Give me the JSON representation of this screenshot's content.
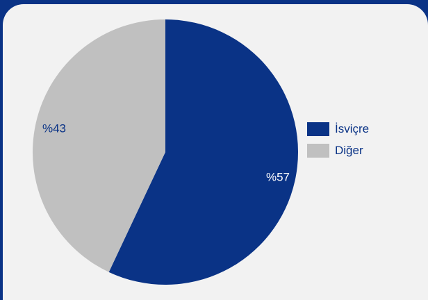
{
  "chart_data": {
    "type": "pie",
    "slices": [
      {
        "name": "İsviçre",
        "value": 57,
        "label": "%57",
        "color": "#0a3386"
      },
      {
        "name": "Diğer",
        "value": 43,
        "label": "%43",
        "color": "#c0c0c0"
      }
    ],
    "start_angle": "12 o'clock",
    "direction": "clockwise",
    "legend_position": "right"
  },
  "colors": {
    "background": "#0a3386",
    "panel": "#f2f2f2",
    "label_on_dark": "#ffffff",
    "label_on_light": "#0a3386"
  }
}
